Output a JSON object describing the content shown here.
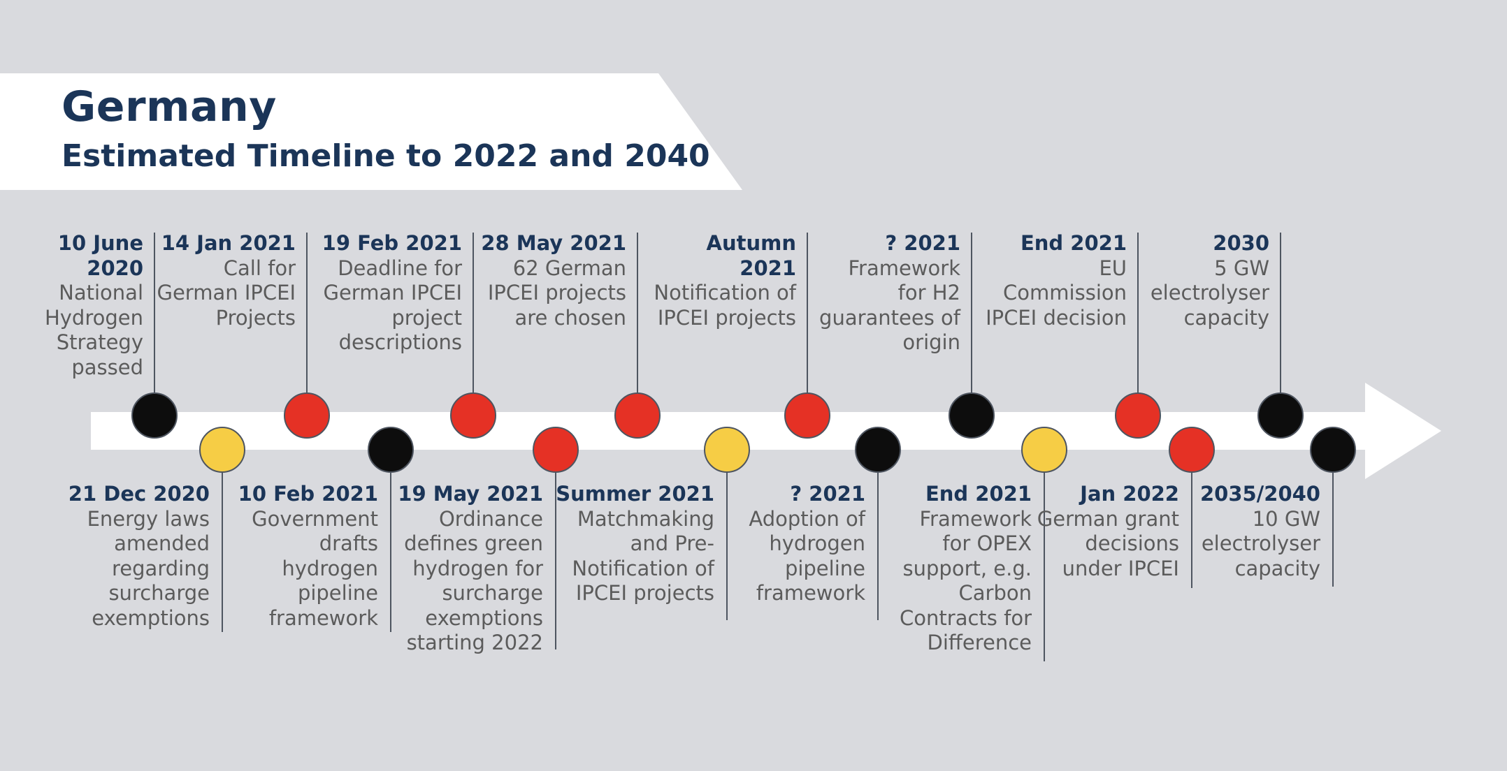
{
  "header": {
    "title": "Germany",
    "subtitle": "Estimated Timeline to 2022 and 2040"
  },
  "colors": {
    "background": "#d9dade",
    "navy": "#1b3558",
    "red": "#e53125",
    "yellow": "#f6cd45",
    "black": "#0d0d0d",
    "arrow": "#ffffff"
  },
  "events_top": [
    {
      "date": "10 June\n2020",
      "text": "National\nHydrogen\nStrategy\npassed",
      "color": "black"
    },
    {
      "date": "14 Jan 2021",
      "text": "Call for\nGerman IPCEI\nProjects",
      "color": "red"
    },
    {
      "date": "19 Feb 2021",
      "text": "Deadline for\nGerman IPCEI\nproject\ndescriptions",
      "color": "red"
    },
    {
      "date": "28 May 2021",
      "text": "62 German\nIPCEI projects\nare chosen",
      "color": "red"
    },
    {
      "date": "Autumn\n2021",
      "text": "Notification of\nIPCEI projects",
      "color": "red"
    },
    {
      "date": "? 2021",
      "text": "Framework\nfor H2\nguarantees of\norigin",
      "color": "black"
    },
    {
      "date": "End 2021",
      "text": "EU\nCommission\nIPCEI decision",
      "color": "red"
    },
    {
      "date": "2030",
      "text": "5 GW\nelectrolyser\ncapacity",
      "color": "black"
    }
  ],
  "events_bottom": [
    {
      "date": "21 Dec 2020",
      "text": "Energy laws\namended\nregarding\nsurcharge\nexemptions",
      "color": "yellow"
    },
    {
      "date": "10 Feb 2021",
      "text": "Government\ndrafts\nhydrogen\npipeline\nframework",
      "color": "black"
    },
    {
      "date": "19 May 2021",
      "text": "Ordinance\ndefines green\nhydrogen for\nsurcharge\nexemptions\nstarting 2022",
      "color": "red"
    },
    {
      "date": "Summer 2021",
      "text": "Matchmaking\nand Pre-\nNotification of\nIPCEI projects",
      "color": "yellow"
    },
    {
      "date": "? 2021",
      "text": "Adoption of\nhydrogen\npipeline\nframework",
      "color": "black"
    },
    {
      "date": "End 2021",
      "text": "Framework\nfor OPEX\nsupport, e.g.\nCarbon\nContracts for\nDifference",
      "color": "yellow"
    },
    {
      "date": "Jan 2022",
      "text": "German grant\ndecisions\nunder IPCEI",
      "color": "red"
    },
    {
      "date": "2035/2040",
      "text": "10 GW\nelectrolyser\ncapacity",
      "color": "black"
    }
  ]
}
